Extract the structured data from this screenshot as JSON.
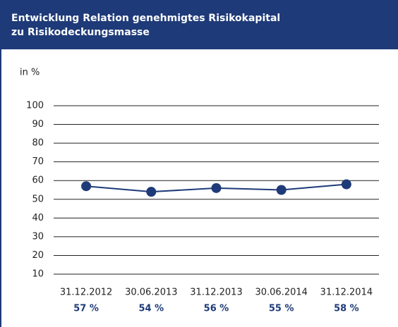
{
  "chart_data": {
    "type": "line",
    "title": [
      "Entwicklung Relation genehmigtes Risikokapital",
      "zu Risikodeckungsmasse"
    ],
    "y_axis_label": "in %",
    "categories": [
      "31.12.2012",
      "30.06.2013",
      "31.12.2013",
      "30.06.2014",
      "31.12.2014"
    ],
    "values": [
      57,
      54,
      56,
      55,
      58
    ],
    "value_labels": [
      "57 %",
      "54 %",
      "56 %",
      "55 %",
      "58 %"
    ],
    "color": "#1e3a78",
    "ylim": [
      10,
      100
    ],
    "yticks": [
      10,
      20,
      30,
      40,
      50,
      60,
      70,
      80,
      90,
      100
    ],
    "grid": true
  }
}
